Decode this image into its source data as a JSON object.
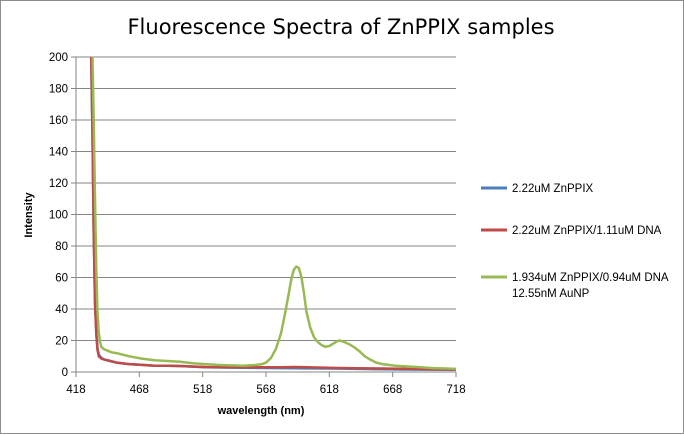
{
  "chart_data": {
    "type": "line",
    "title": "Fluorescence Spectra of ZnPPIX samples",
    "xlabel": "wavelength (nm)",
    "ylabel": "Intensity",
    "xlim": [
      418,
      718
    ],
    "ylim": [
      0,
      200
    ],
    "xticks": [
      418,
      468,
      518,
      568,
      618,
      668,
      718
    ],
    "yticks": [
      0,
      20,
      40,
      60,
      80,
      100,
      120,
      140,
      160,
      180,
      200
    ],
    "grid": "horizontal",
    "legend_position": "right",
    "series": [
      {
        "name": "2.22uM ZnPPIX",
        "color": "#4a7ebb",
        "x": [
          430,
          431,
          432,
          433,
          434,
          435,
          436,
          438,
          440,
          445,
          450,
          460,
          470,
          480,
          490,
          500,
          520,
          540,
          560,
          580,
          590,
          600,
          620,
          640,
          660,
          680,
          700,
          718
        ],
        "y": [
          200,
          150,
          90,
          45,
          25,
          15,
          11,
          9,
          8,
          7,
          6,
          5,
          4.5,
          4,
          4,
          3.8,
          3,
          2.8,
          2.6,
          2.5,
          2.4,
          2.3,
          2.2,
          2,
          1.8,
          1.6,
          1.5,
          1.4
        ]
      },
      {
        "name": "2.22uM ZnPPIX/1.11uM DNA",
        "color": "#be4b48",
        "x": [
          430,
          431,
          432,
          433,
          434,
          435,
          436,
          438,
          440,
          445,
          450,
          460,
          470,
          480,
          490,
          500,
          520,
          540,
          560,
          580,
          590,
          600,
          620,
          640,
          660,
          680,
          700,
          718
        ],
        "y": [
          200,
          150,
          88,
          43,
          24,
          14,
          10,
          8.5,
          8,
          7,
          6,
          5,
          4.5,
          4,
          4,
          3.8,
          3.2,
          3,
          3,
          3,
          3.2,
          3,
          2.6,
          2.4,
          2.2,
          2,
          1.8,
          1.6
        ]
      },
      {
        "name": "1.934uM ZnPPIX/0.94uM DNA/12.55nM AuNP",
        "color": "#98b954",
        "x": [
          431,
          432,
          433,
          434,
          435,
          436,
          437,
          438,
          440,
          443,
          446,
          450,
          460,
          470,
          480,
          490,
          500,
          510,
          520,
          530,
          540,
          550,
          560,
          565,
          568,
          572,
          576,
          580,
          583,
          586,
          588,
          590,
          592,
          594,
          596,
          598,
          600,
          603,
          606,
          609,
          612,
          615,
          618,
          620,
          622,
          624,
          626,
          628,
          630,
          634,
          638,
          642,
          646,
          650,
          655,
          660,
          670,
          680,
          690,
          700,
          710,
          718
        ],
        "y": [
          200,
          160,
          110,
          65,
          38,
          25,
          19,
          16,
          14.5,
          13.5,
          12.5,
          12,
          10,
          8.5,
          7.5,
          7,
          6.5,
          5.5,
          5,
          4.5,
          4.2,
          4,
          4.5,
          5,
          6,
          9,
          15,
          25,
          37,
          50,
          59,
          65,
          67,
          66,
          60,
          50,
          38,
          28,
          22,
          19,
          17,
          16,
          16.5,
          17.5,
          18.5,
          19.5,
          20,
          19.5,
          19,
          17.5,
          15.5,
          13,
          10,
          8,
          6,
          5,
          4,
          3.5,
          3,
          2.5,
          2.2,
          2
        ]
      }
    ]
  }
}
